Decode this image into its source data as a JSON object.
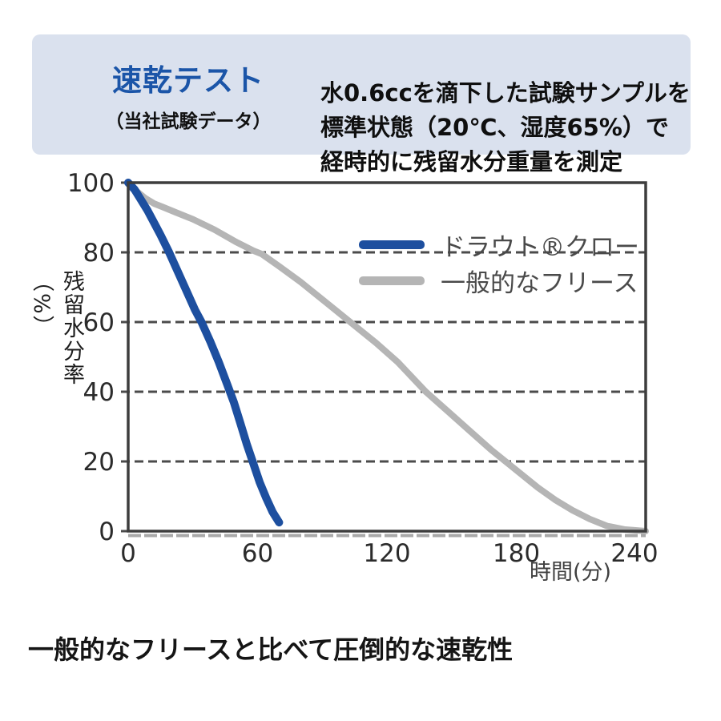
{
  "header": {
    "title": "速乾テスト",
    "subtitle": "（当社試験データ）",
    "description_lines": [
      "水0.6ccを滴下した試験サンプルを",
      "標準状態（20℃、湿度65%）で",
      "経時的に残留水分重量を測定"
    ],
    "background_color": "#dae1ee",
    "title_color": "#1b55a8"
  },
  "chart_data": {
    "type": "line",
    "title": "",
    "xlabel": "時間(分)",
    "ylabel": "残留水分率（%）",
    "xlim": [
      0,
      240
    ],
    "ylim": [
      0,
      100
    ],
    "x_ticks": [
      0,
      60,
      120,
      180,
      240
    ],
    "y_ticks": [
      0,
      20,
      40,
      60,
      80,
      100
    ],
    "grid": "horizontal dashed lines at 20, 40, 60, 80",
    "legend_position": "top-right inside plot",
    "axis_color": "#3d3d3d",
    "grid_color": "#4b4b4b",
    "series": [
      {
        "name": "ドラウト®クロー",
        "color": "#1d4f9f",
        "line_width": 10,
        "points": [
          [
            0,
            100
          ],
          [
            3,
            98
          ],
          [
            6,
            95
          ],
          [
            9,
            92
          ],
          [
            12,
            88.5
          ],
          [
            15,
            85
          ],
          [
            19,
            80
          ],
          [
            23,
            74.5
          ],
          [
            27,
            69
          ],
          [
            31,
            63.5
          ],
          [
            34,
            60
          ],
          [
            38,
            54.5
          ],
          [
            42,
            48.5
          ],
          [
            46,
            42
          ],
          [
            49,
            37
          ],
          [
            52,
            31
          ],
          [
            55,
            25
          ],
          [
            58,
            19.5
          ],
          [
            61,
            14
          ],
          [
            64,
            9.5
          ],
          [
            67,
            5.5
          ],
          [
            70,
            2.5
          ]
        ]
      },
      {
        "name": "一般的なフリース",
        "color": "#b5b5b5",
        "line_width": 8,
        "points": [
          [
            0,
            100
          ],
          [
            4,
            97.5
          ],
          [
            8,
            95.5
          ],
          [
            12,
            94
          ],
          [
            16,
            93
          ],
          [
            22,
            91.5
          ],
          [
            30,
            89.5
          ],
          [
            40,
            86.5
          ],
          [
            50,
            83
          ],
          [
            58,
            80.5
          ],
          [
            62,
            79.5
          ],
          [
            70,
            76
          ],
          [
            80,
            71.5
          ],
          [
            90,
            66.5
          ],
          [
            103,
            60
          ],
          [
            115,
            54
          ],
          [
            125,
            48.5
          ],
          [
            138,
            40
          ],
          [
            148,
            34.5
          ],
          [
            158,
            29
          ],
          [
            168,
            23.5
          ],
          [
            175,
            20
          ],
          [
            182,
            16.5
          ],
          [
            190,
            12.5
          ],
          [
            198,
            9
          ],
          [
            206,
            6
          ],
          [
            214,
            3.5
          ],
          [
            222,
            1.5
          ],
          [
            230,
            0.5
          ],
          [
            240,
            0
          ]
        ]
      }
    ]
  },
  "footer": {
    "headline": "一般的なフリースと比べて圧倒的な速乾性"
  }
}
